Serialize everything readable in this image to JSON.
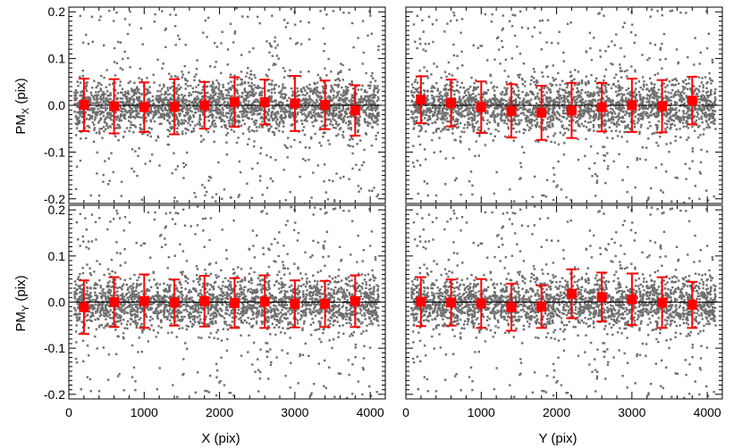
{
  "chart_data": {
    "type": "scatter",
    "layout": "2x2 grid, shared axes",
    "xlim": [
      0,
      4200
    ],
    "ylim": [
      -0.21,
      0.21
    ],
    "x_ticks": [
      0,
      1000,
      2000,
      3000,
      4000
    ],
    "x_tick_labels": [
      "0",
      "1000",
      "2000",
      "3000",
      "4000"
    ],
    "y_ticks": [
      -0.2,
      -0.1,
      0.0,
      0.1,
      0.2
    ],
    "y_tick_labels": [
      "-0.2",
      "-0.1",
      "0.0",
      "0.1",
      "0.2"
    ],
    "colors": {
      "points": "#6e6e6e",
      "binned": "#ff0000",
      "zero_line": "#000000"
    },
    "scatter_note": "dense grey point cloud centred on 0, core spread about +/-0.05 pix",
    "panels": [
      {
        "xvar": "X",
        "yvar": "PM_X",
        "ylabel": "PM",
        "ylabel_sub": "X",
        "ylabel_suffix": " (pix)",
        "xlabel": "",
        "binned": {
          "x": [
            200,
            600,
            1000,
            1400,
            1800,
            2200,
            2600,
            3000,
            3400,
            3800
          ],
          "y": [
            0.001,
            -0.002,
            -0.004,
            -0.003,
            0.0,
            0.007,
            0.007,
            0.004,
            0.001,
            -0.011
          ],
          "err": [
            0.056,
            0.058,
            0.053,
            0.059,
            0.05,
            0.053,
            0.048,
            0.059,
            0.052,
            0.054
          ]
        }
      },
      {
        "xvar": "Y",
        "yvar": "PM_X",
        "ylabel": "",
        "ylabel_sub": "",
        "ylabel_suffix": "",
        "xlabel": "",
        "binned": {
          "x": [
            200,
            600,
            1000,
            1400,
            1800,
            2200,
            2600,
            3000,
            3400,
            3800
          ],
          "y": [
            0.012,
            0.005,
            -0.004,
            -0.012,
            -0.016,
            -0.011,
            -0.004,
            0.0,
            -0.002,
            0.01
          ],
          "err": [
            0.05,
            0.05,
            0.055,
            0.057,
            0.058,
            0.059,
            0.052,
            0.057,
            0.056,
            0.051
          ]
        }
      },
      {
        "xvar": "X",
        "yvar": "PM_Y",
        "ylabel": "PM",
        "ylabel_sub": "Y",
        "ylabel_suffix": " (pix)",
        "xlabel": "X (pix)",
        "binned": {
          "x": [
            200,
            600,
            1000,
            1400,
            1800,
            2200,
            2600,
            3000,
            3400,
            3800
          ],
          "y": [
            -0.011,
            0.0,
            0.002,
            -0.001,
            0.002,
            -0.002,
            0.001,
            -0.004,
            -0.004,
            0.002
          ],
          "err": [
            0.058,
            0.054,
            0.058,
            0.05,
            0.055,
            0.054,
            0.057,
            0.051,
            0.05,
            0.056
          ]
        }
      },
      {
        "xvar": "Y",
        "yvar": "PM_Y",
        "ylabel": "",
        "ylabel_sub": "",
        "ylabel_suffix": "",
        "xlabel": "Y (pix)",
        "binned": {
          "x": [
            200,
            600,
            1000,
            1400,
            1800,
            2200,
            2600,
            3000,
            3400,
            3800
          ],
          "y": [
            0.001,
            -0.001,
            -0.003,
            -0.011,
            -0.01,
            0.018,
            0.011,
            0.006,
            -0.001,
            -0.006
          ],
          "err": [
            0.053,
            0.05,
            0.053,
            0.051,
            0.046,
            0.053,
            0.053,
            0.056,
            0.055,
            0.05
          ]
        }
      }
    ]
  }
}
